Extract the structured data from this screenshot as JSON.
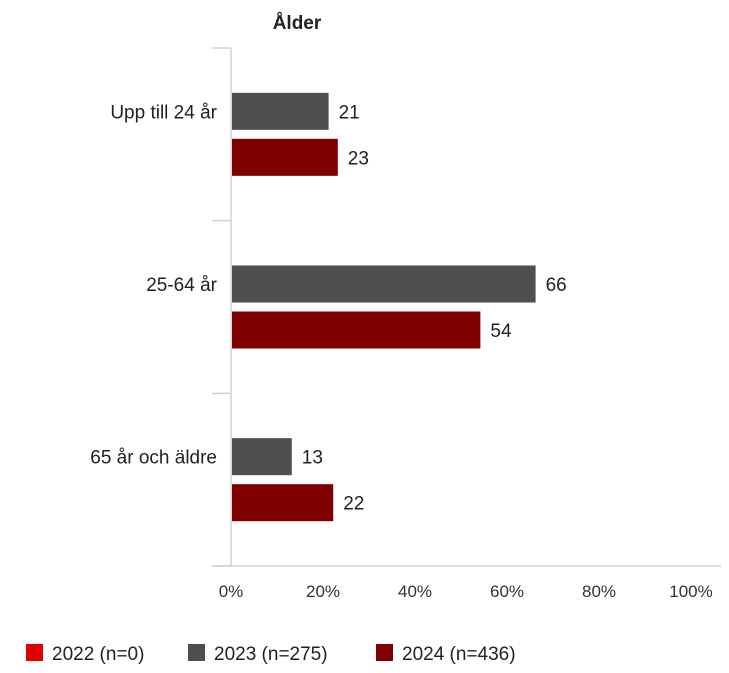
{
  "chart_data": {
    "type": "bar",
    "orientation": "horizontal",
    "title": "Ålder",
    "categories": [
      "Upp till 24 år",
      "25-64 år",
      "65 år och äldre"
    ],
    "series": [
      {
        "name": "2022 (n=0)",
        "color": "#e00000",
        "values": [
          null,
          null,
          null
        ]
      },
      {
        "name": "2023 (n=275)",
        "color": "#4f4f4f",
        "values": [
          21,
          66,
          13
        ]
      },
      {
        "name": "2024 (n=436)",
        "color": "#800000",
        "values": [
          23,
          54,
          22
        ]
      }
    ],
    "xlim": [
      0,
      100
    ],
    "xticks": [
      "0%",
      "20%",
      "40%",
      "60%",
      "80%",
      "100%"
    ],
    "grid": false,
    "legend_position": "bottom"
  }
}
